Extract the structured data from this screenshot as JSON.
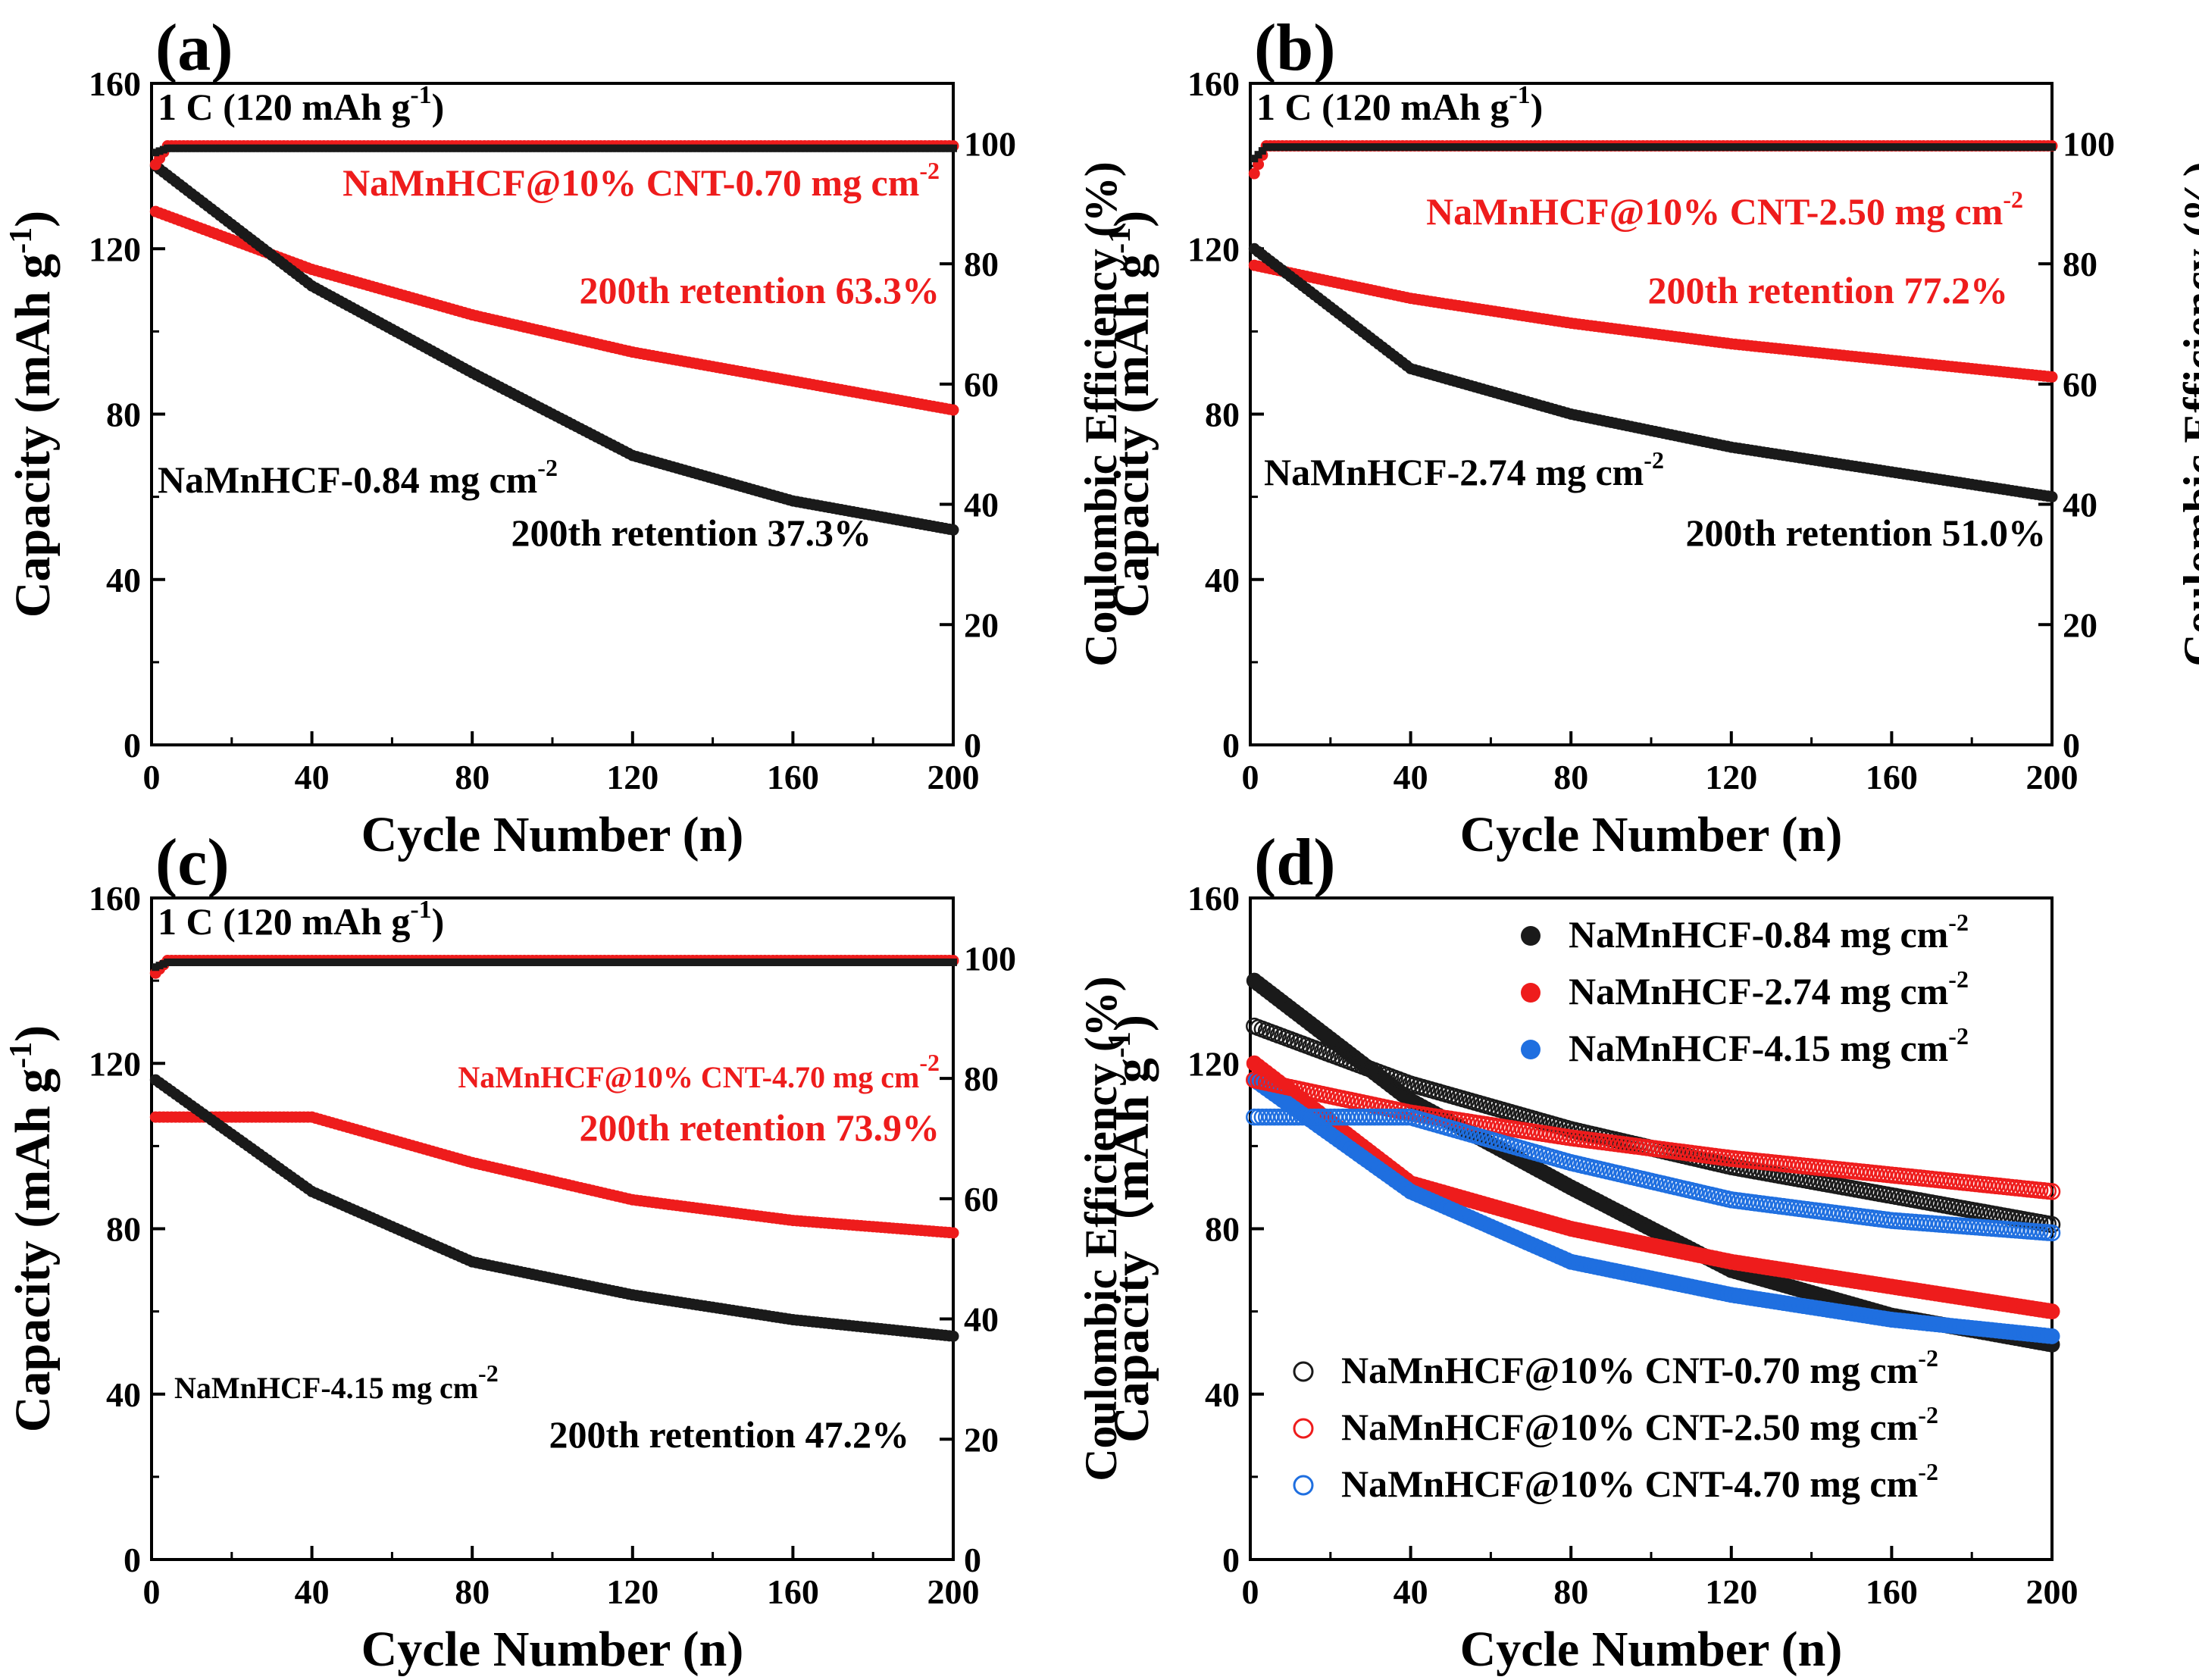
{
  "figure": {
    "xlabel": "Cycle Number (n)",
    "ylabel_left": "Capacity (mAh g",
    "ylabel_left_sup": "-1",
    "ylabel_left_end": ")",
    "ylabel_right": "Coulombic Efficiency (%)",
    "ylabel_left_d": "Capacity（mAh g",
    "rate_label": "1 C (120 mAh g",
    "rate_label_sup": "-1",
    "rate_label_end": ")"
  },
  "colors": {
    "black_series": "#1a1a1a",
    "red_series": "#ee1c1c",
    "blue_series": "#1f6fe0"
  },
  "chart_data": [
    {
      "type": "scatter",
      "panel": "(a)",
      "xlim": [
        0,
        200
      ],
      "ylim": [
        0,
        160
      ],
      "y2lim": [
        0,
        110
      ],
      "xticks": [
        0,
        40,
        80,
        120,
        160,
        200
      ],
      "yticks": [
        0,
        40,
        80,
        120,
        160
      ],
      "y2ticks": [
        0,
        20,
        40,
        60,
        80,
        100
      ],
      "xlabel": "Cycle Number (n)",
      "ylabel": "Capacity (mAh g-1)",
      "y2label": "Coulombic Efficiency (%)",
      "annotations": {
        "rate": "1 C (120 mAh g-1)",
        "red_name": "NaMnHCF@10% CNT-0.70 mg cm",
        "red_retention": "200th retention 63.3%",
        "black_name": "NaMnHCF-0.84 mg cm",
        "black_retention": "200th retention 37.3%"
      },
      "series": [
        {
          "name": "NaMnHCF@10% CNT-0.70 mg cm-2 capacity",
          "color": "red",
          "x": [
            1,
            40,
            80,
            120,
            160,
            200
          ],
          "y": [
            129,
            115,
            104,
            95,
            88,
            81
          ]
        },
        {
          "name": "NaMnHCF-0.84 mg cm-2 capacity",
          "color": "black",
          "x": [
            1,
            40,
            80,
            120,
            160,
            200
          ],
          "y": [
            140,
            111,
            90,
            70,
            59,
            52
          ]
        },
        {
          "name": "NaMnHCF@10% CNT-0.70 mg cm-2 CE",
          "color": "red",
          "axis": "right",
          "x": [
            1,
            200
          ],
          "y": [
            96.5,
            99.6
          ]
        },
        {
          "name": "NaMnHCF-0.84 mg cm-2 CE",
          "color": "black",
          "axis": "right",
          "x": [
            1,
            200
          ],
          "y": [
            98.5,
            99.2
          ]
        }
      ]
    },
    {
      "type": "scatter",
      "panel": "(b)",
      "xlim": [
        0,
        200
      ],
      "ylim": [
        0,
        160
      ],
      "y2lim": [
        0,
        110
      ],
      "xticks": [
        0,
        40,
        80,
        120,
        160,
        200
      ],
      "yticks": [
        0,
        40,
        80,
        120,
        160
      ],
      "y2ticks": [
        0,
        20,
        40,
        60,
        80,
        100
      ],
      "xlabel": "Cycle Number (n)",
      "ylabel": "Capacity (mAh g-1)",
      "y2label": "Coulombic Efficiency (%)",
      "annotations": {
        "rate": "1 C (120 mAh g-1)",
        "red_name": "NaMnHCF@10% CNT-2.50 mg cm",
        "red_retention": "200th retention 77.2%",
        "black_name": "NaMnHCF-2.74 mg cm",
        "black_retention": "200th retention 51.0%"
      },
      "series": [
        {
          "name": "NaMnHCF@10% CNT-2.50 mg cm-2 capacity",
          "color": "red",
          "x": [
            1,
            40,
            80,
            120,
            160,
            200
          ],
          "y": [
            116,
            108,
            102,
            97,
            93,
            89
          ]
        },
        {
          "name": "NaMnHCF-2.74 mg cm-2 capacity",
          "color": "black",
          "x": [
            1,
            40,
            80,
            120,
            160,
            200
          ],
          "y": [
            120,
            91,
            80,
            72,
            66,
            60
          ]
        },
        {
          "name": "NaMnHCF@10% CNT-2.50 mg cm-2 CE",
          "color": "red",
          "axis": "right",
          "x": [
            1,
            200
          ],
          "y": [
            95,
            99.6
          ]
        },
        {
          "name": "NaMnHCF-2.74 mg cm-2 CE",
          "color": "black",
          "axis": "right",
          "x": [
            1,
            200
          ],
          "y": [
            97.5,
            99.4
          ]
        }
      ]
    },
    {
      "type": "scatter",
      "panel": "(c)",
      "xlim": [
        0,
        200
      ],
      "ylim": [
        0,
        160
      ],
      "y2lim": [
        0,
        110
      ],
      "xticks": [
        0,
        40,
        80,
        120,
        160,
        200
      ],
      "yticks": [
        0,
        40,
        80,
        120,
        160
      ],
      "y2ticks": [
        0,
        20,
        40,
        60,
        80,
        100
      ],
      "xlabel": "Cycle Number (n)",
      "ylabel": "Capacity (mAh g-1)",
      "y2label": "Coulombic Efficiency (%)",
      "annotations": {
        "rate": "1 C (120 mAh g-1)",
        "red_name": "NaMnHCF@10% CNT-4.70 mg cm",
        "red_retention": "200th retention 73.9%",
        "black_name": "NaMnHCF-4.15 mg cm",
        "black_retention": "200th retention 47.2%"
      },
      "series": [
        {
          "name": "NaMnHCF@10% CNT-4.70 mg cm-2 capacity",
          "color": "red",
          "x": [
            1,
            40,
            80,
            120,
            160,
            200
          ],
          "y": [
            107,
            107,
            96,
            87,
            82,
            79
          ]
        },
        {
          "name": "NaMnHCF-4.15 mg cm-2 capacity",
          "color": "black",
          "x": [
            1,
            40,
            80,
            120,
            160,
            200
          ],
          "y": [
            116,
            89,
            72,
            64,
            58,
            54
          ]
        },
        {
          "name": "NaMnHCF@10% CNT-4.70 mg cm-2 CE",
          "color": "red",
          "axis": "right",
          "x": [
            1,
            200
          ],
          "y": [
            97.5,
            99.6
          ]
        },
        {
          "name": "NaMnHCF-4.15 mg cm-2 CE",
          "color": "black",
          "axis": "right",
          "x": [
            1,
            200
          ],
          "y": [
            98.5,
            99.3
          ]
        }
      ]
    },
    {
      "type": "scatter",
      "panel": "(d)",
      "xlim": [
        0,
        200
      ],
      "ylim": [
        0,
        160
      ],
      "xticks": [
        0,
        40,
        80,
        120,
        160,
        200
      ],
      "yticks": [
        0,
        40,
        80,
        120,
        160
      ],
      "xlabel": "Cycle Number (n)",
      "ylabel": "Capacity（mAh g-1）",
      "legend_position": "top-right and bottom-left",
      "legend": [
        "NaMnHCF-0.84 mg cm",
        "NaMnHCF-2.74 mg cm",
        "NaMnHCF-4.15 mg cm",
        "NaMnHCF@10% CNT-0.70 mg cm",
        "NaMnHCF@10% CNT-2.50 mg cm",
        "NaMnHCF@10% CNT-4.70 mg cm"
      ],
      "series": [
        {
          "name": "NaMnHCF-0.84 mg cm-2",
          "color": "black",
          "filled": true,
          "x": [
            1,
            40,
            80,
            120,
            160,
            200
          ],
          "y": [
            140,
            111,
            90,
            70,
            59,
            52
          ]
        },
        {
          "name": "NaMnHCF-2.74 mg cm-2",
          "color": "red",
          "filled": true,
          "x": [
            1,
            40,
            80,
            120,
            160,
            200
          ],
          "y": [
            120,
            91,
            80,
            72,
            66,
            60
          ]
        },
        {
          "name": "NaMnHCF-4.15 mg cm-2",
          "color": "blue",
          "filled": true,
          "x": [
            1,
            40,
            80,
            120,
            160,
            200
          ],
          "y": [
            116,
            89,
            72,
            64,
            58,
            54
          ]
        },
        {
          "name": "NaMnHCF@10% CNT-0.70 mg cm-2",
          "color": "black",
          "filled": false,
          "x": [
            1,
            40,
            80,
            120,
            160,
            200
          ],
          "y": [
            129,
            115,
            104,
            95,
            88,
            81
          ]
        },
        {
          "name": "NaMnHCF@10% CNT-2.50 mg cm-2",
          "color": "red",
          "filled": false,
          "x": [
            1,
            40,
            80,
            120,
            160,
            200
          ],
          "y": [
            116,
            108,
            102,
            97,
            93,
            89
          ]
        },
        {
          "name": "NaMnHCF@10% CNT-4.70 mg cm-2",
          "color": "blue",
          "filled": false,
          "x": [
            1,
            40,
            80,
            120,
            160,
            200
          ],
          "y": [
            107,
            107,
            96,
            87,
            82,
            79
          ]
        }
      ]
    }
  ]
}
